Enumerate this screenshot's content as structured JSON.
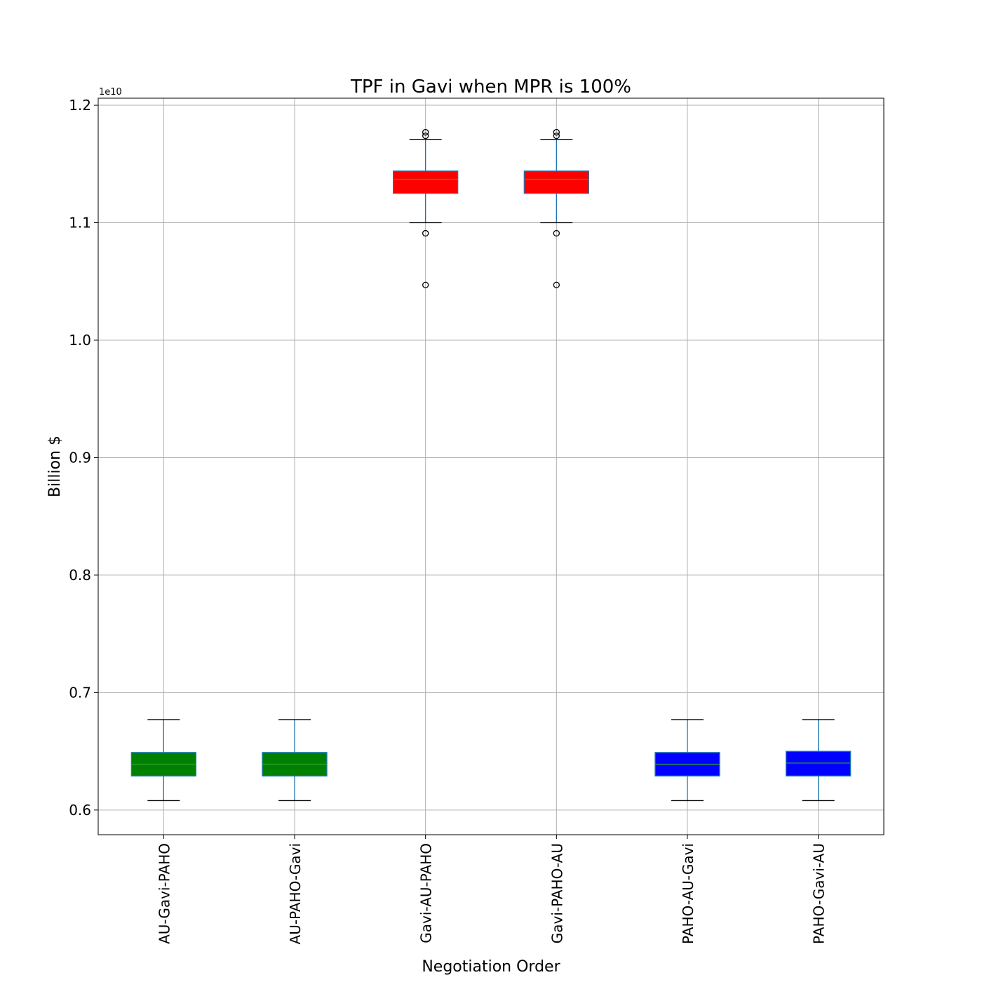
{
  "chart_data": {
    "type": "box",
    "title": "TPF in Gavi when MPR is 100%",
    "xlabel": "Negotiation Order",
    "ylabel": "Billion $",
    "offset_label": "1e10",
    "ylim": [
      0.579,
      1.206
    ],
    "yticks": [
      "0.6",
      "0.7",
      "0.8",
      "0.9",
      "1.0",
      "1.1",
      "1.2"
    ],
    "grid": true,
    "categories": [
      "AU-Gavi-PAHO",
      "AU-PAHO-Gavi",
      "Gavi-AU-PAHO",
      "Gavi-PAHO-AU",
      "PAHO-AU-Gavi",
      "PAHO-Gavi-AU"
    ],
    "boxes": [
      {
        "category": "AU-Gavi-PAHO",
        "color": "#008000",
        "whislo": 0.608,
        "q1": 0.629,
        "median": 0.639,
        "q3": 0.649,
        "whishi": 0.677,
        "fliers": []
      },
      {
        "category": "AU-PAHO-Gavi",
        "color": "#008000",
        "whislo": 0.608,
        "q1": 0.629,
        "median": 0.639,
        "q3": 0.649,
        "whishi": 0.677,
        "fliers": []
      },
      {
        "category": "Gavi-AU-PAHO",
        "color": "#ff0000",
        "whislo": 1.1,
        "q1": 1.125,
        "median": 1.137,
        "q3": 1.144,
        "whishi": 1.171,
        "fliers": [
          1.047,
          1.091,
          1.174,
          1.177
        ]
      },
      {
        "category": "Gavi-PAHO-AU",
        "color": "#ff0000",
        "whislo": 1.1,
        "q1": 1.125,
        "median": 1.137,
        "q3": 1.144,
        "whishi": 1.171,
        "fliers": [
          1.047,
          1.091,
          1.174,
          1.177
        ]
      },
      {
        "category": "PAHO-AU-Gavi",
        "color": "#0000ff",
        "whislo": 0.608,
        "q1": 0.629,
        "median": 0.639,
        "q3": 0.649,
        "whishi": 0.677,
        "fliers": []
      },
      {
        "category": "PAHO-Gavi-AU",
        "color": "#0000ff",
        "whislo": 0.608,
        "q1": 0.629,
        "median": 0.64,
        "q3": 0.65,
        "whishi": 0.677,
        "fliers": []
      }
    ],
    "colors": {
      "whisker": "#1f77b4",
      "median": "#2ca02c",
      "grid": "#b0b0b0"
    }
  }
}
